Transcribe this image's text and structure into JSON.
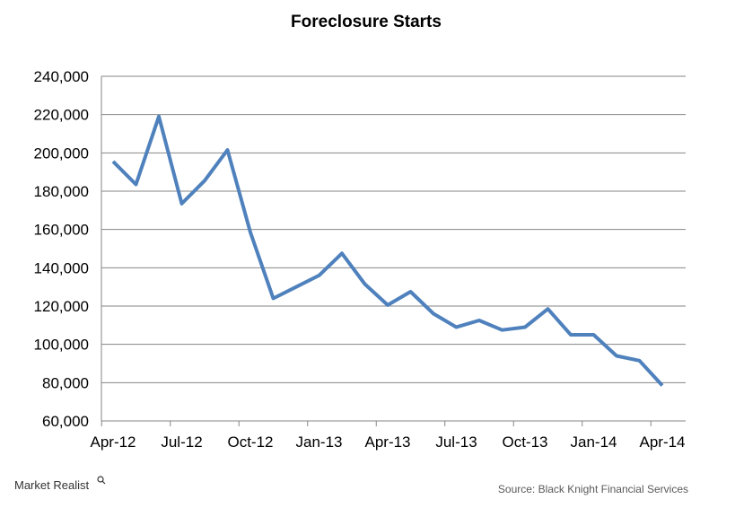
{
  "chart_data": {
    "type": "line",
    "title": "Foreclosure Starts",
    "xlabel": "",
    "ylabel": "",
    "x_tick_labels": [
      "Apr-12",
      "Jul-12",
      "Oct-12",
      "Jan-13",
      "Apr-13",
      "Jul-13",
      "Oct-13",
      "Jan-14",
      "Apr-14"
    ],
    "y_tick_labels": [
      "60,000",
      "80,000",
      "100,000",
      "120,000",
      "140,000",
      "160,000",
      "180,000",
      "200,000",
      "220,000",
      "240,000"
    ],
    "ylim": [
      60000,
      240000
    ],
    "grid": true,
    "series": [
      {
        "color": "#4F81BD",
        "x": [
          "Apr-12",
          "May-12",
          "Jun-12",
          "Jul-12",
          "Aug-12",
          "Sep-12",
          "Oct-12",
          "Nov-12",
          "Dec-12",
          "Jan-13",
          "Feb-13",
          "Mar-13",
          "Apr-13",
          "May-13",
          "Jun-13",
          "Jul-13",
          "Aug-13",
          "Sep-13",
          "Oct-13",
          "Nov-13",
          "Dec-13",
          "Jan-14",
          "Feb-14",
          "Mar-14",
          "Apr-14"
        ],
        "values": [
          195500,
          183500,
          219000,
          173500,
          185500,
          201500,
          158500,
          124000,
          130000,
          136000,
          147500,
          131500,
          120500,
          127500,
          116000,
          109000,
          112500,
          107500,
          109000,
          118500,
          105000,
          105000,
          94000,
          91500,
          78500
        ]
      }
    ]
  },
  "footer": {
    "brand": "Market Realist",
    "source": "Source: Black Knight Financial Services"
  }
}
